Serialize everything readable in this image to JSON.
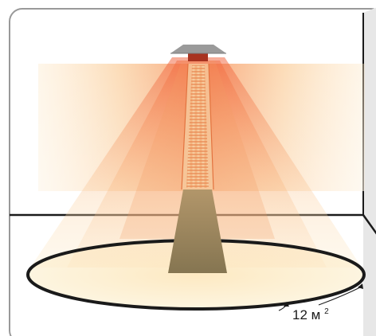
{
  "area_label": {
    "value": "12",
    "unit": "м",
    "unit_exponent": "2"
  },
  "colors": {
    "heat_core": "#f0603a",
    "heat_mid": "#f6a96d",
    "heat_outer": "#fde6c3",
    "floor_disc": "#fdf3d8",
    "heater_body": "#8a7a56",
    "heater_cap": "#9a9a9a",
    "burner": "#a83320",
    "room_outline": "#1a1a1a"
  },
  "icons": {
    "heater": "patio-heater-icon",
    "heat_zone": "radiant-heat-cone",
    "coverage": "floor-coverage-circle"
  }
}
